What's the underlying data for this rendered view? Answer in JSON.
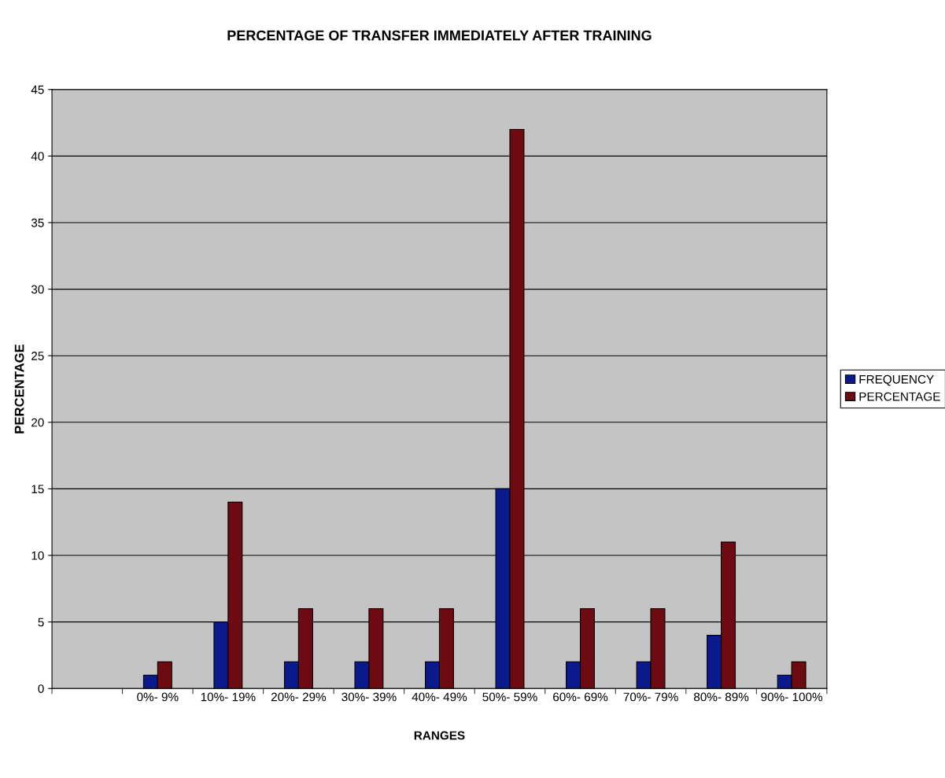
{
  "chart_data": {
    "type": "bar",
    "title": "PERCENTAGE OF TRANSFER IMMEDIATELY AFTER TRAINING",
    "xlabel": "RANGES",
    "ylabel": "PERCENTAGE",
    "categories": [
      null,
      "0%- 9%",
      "10%- 19%",
      "20%- 29%",
      "30%- 39%",
      "40%- 49%",
      "50%- 59%",
      "60%- 69%",
      "70%- 79%",
      "80%- 89%",
      "90%- 100%"
    ],
    "series": [
      {
        "name": "FREQUENCY",
        "color": "#0a1a8c",
        "values": [
          null,
          1,
          5,
          2,
          2,
          2,
          15,
          2,
          2,
          4,
          1
        ]
      },
      {
        "name": "PERCENTAGE",
        "color": "#6e0a12",
        "values": [
          null,
          2,
          14,
          6,
          6,
          6,
          42,
          6,
          6,
          11,
          2
        ]
      }
    ],
    "ylim": [
      0,
      45
    ],
    "yticks": [
      0,
      5,
      10,
      15,
      20,
      25,
      30,
      35,
      40,
      45
    ],
    "grid": "y",
    "legend": "right"
  }
}
